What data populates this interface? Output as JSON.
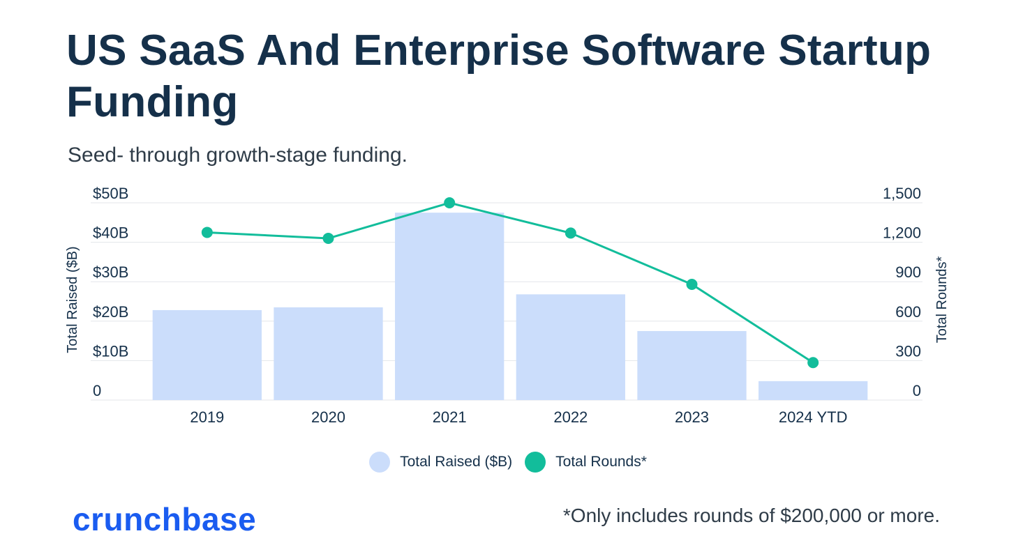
{
  "title": "US SaaS And Enterprise Software Startup Funding",
  "subtitle": "Seed- through growth-stage funding.",
  "footnote": "*Only includes rounds of $200,000 or more.",
  "brand": {
    "name": "crunchbase",
    "color": "#1a5cf0"
  },
  "colors": {
    "bar": "#cbddfb",
    "line": "#12bd9b",
    "grid": "#e3e6ea",
    "text": "#15304a"
  },
  "legend": [
    {
      "label": "Total Raised ($B)",
      "color": "#cbddfb"
    },
    {
      "label": "Total Rounds*",
      "color": "#12bd9b"
    }
  ],
  "chart_data": {
    "type": "bar",
    "categories": [
      "2019",
      "2020",
      "2021",
      "2022",
      "2023",
      "2024 YTD"
    ],
    "series": [
      {
        "name": "Total Raised ($B)",
        "type": "bar",
        "axis": "left",
        "values": [
          22.8,
          23.5,
          47.5,
          26.8,
          17.5,
          4.8
        ]
      },
      {
        "name": "Total Rounds*",
        "type": "line",
        "axis": "right",
        "values": [
          1275,
          1230,
          1500,
          1270,
          880,
          285
        ]
      }
    ],
    "y_left": {
      "label": "Total Raised ($B)",
      "range": [
        0,
        50
      ],
      "ticks": [
        "0",
        "$10B",
        "$20B",
        "$30B",
        "$40B",
        "$50B"
      ]
    },
    "y_right": {
      "label": "Total Rounds*",
      "range": [
        0,
        1500
      ],
      "ticks": [
        "0",
        "300",
        "600",
        "900",
        "1,200",
        "1,500"
      ]
    },
    "grid": true,
    "legend_position": "bottom-center"
  }
}
